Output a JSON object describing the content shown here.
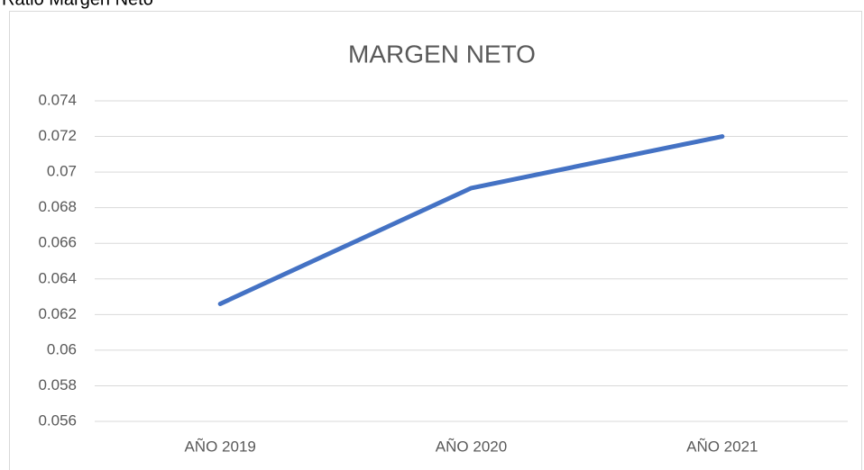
{
  "caption": "Ratio Margen Neto",
  "chart_data": {
    "type": "line",
    "title": "MARGEN NETO",
    "categories": [
      "AÑO 2019",
      "AÑO 2020",
      "AÑO 2021"
    ],
    "series": [
      {
        "name": "MARGEN NETO",
        "color": "#4472c4",
        "values": [
          0.0626,
          0.0691,
          0.072
        ]
      }
    ],
    "ylim": [
      0.056,
      0.074
    ],
    "yticks": [
      0.056,
      0.058,
      0.06,
      0.062,
      0.064,
      0.066,
      0.068,
      0.07,
      0.072,
      0.074
    ],
    "grid": true
  }
}
